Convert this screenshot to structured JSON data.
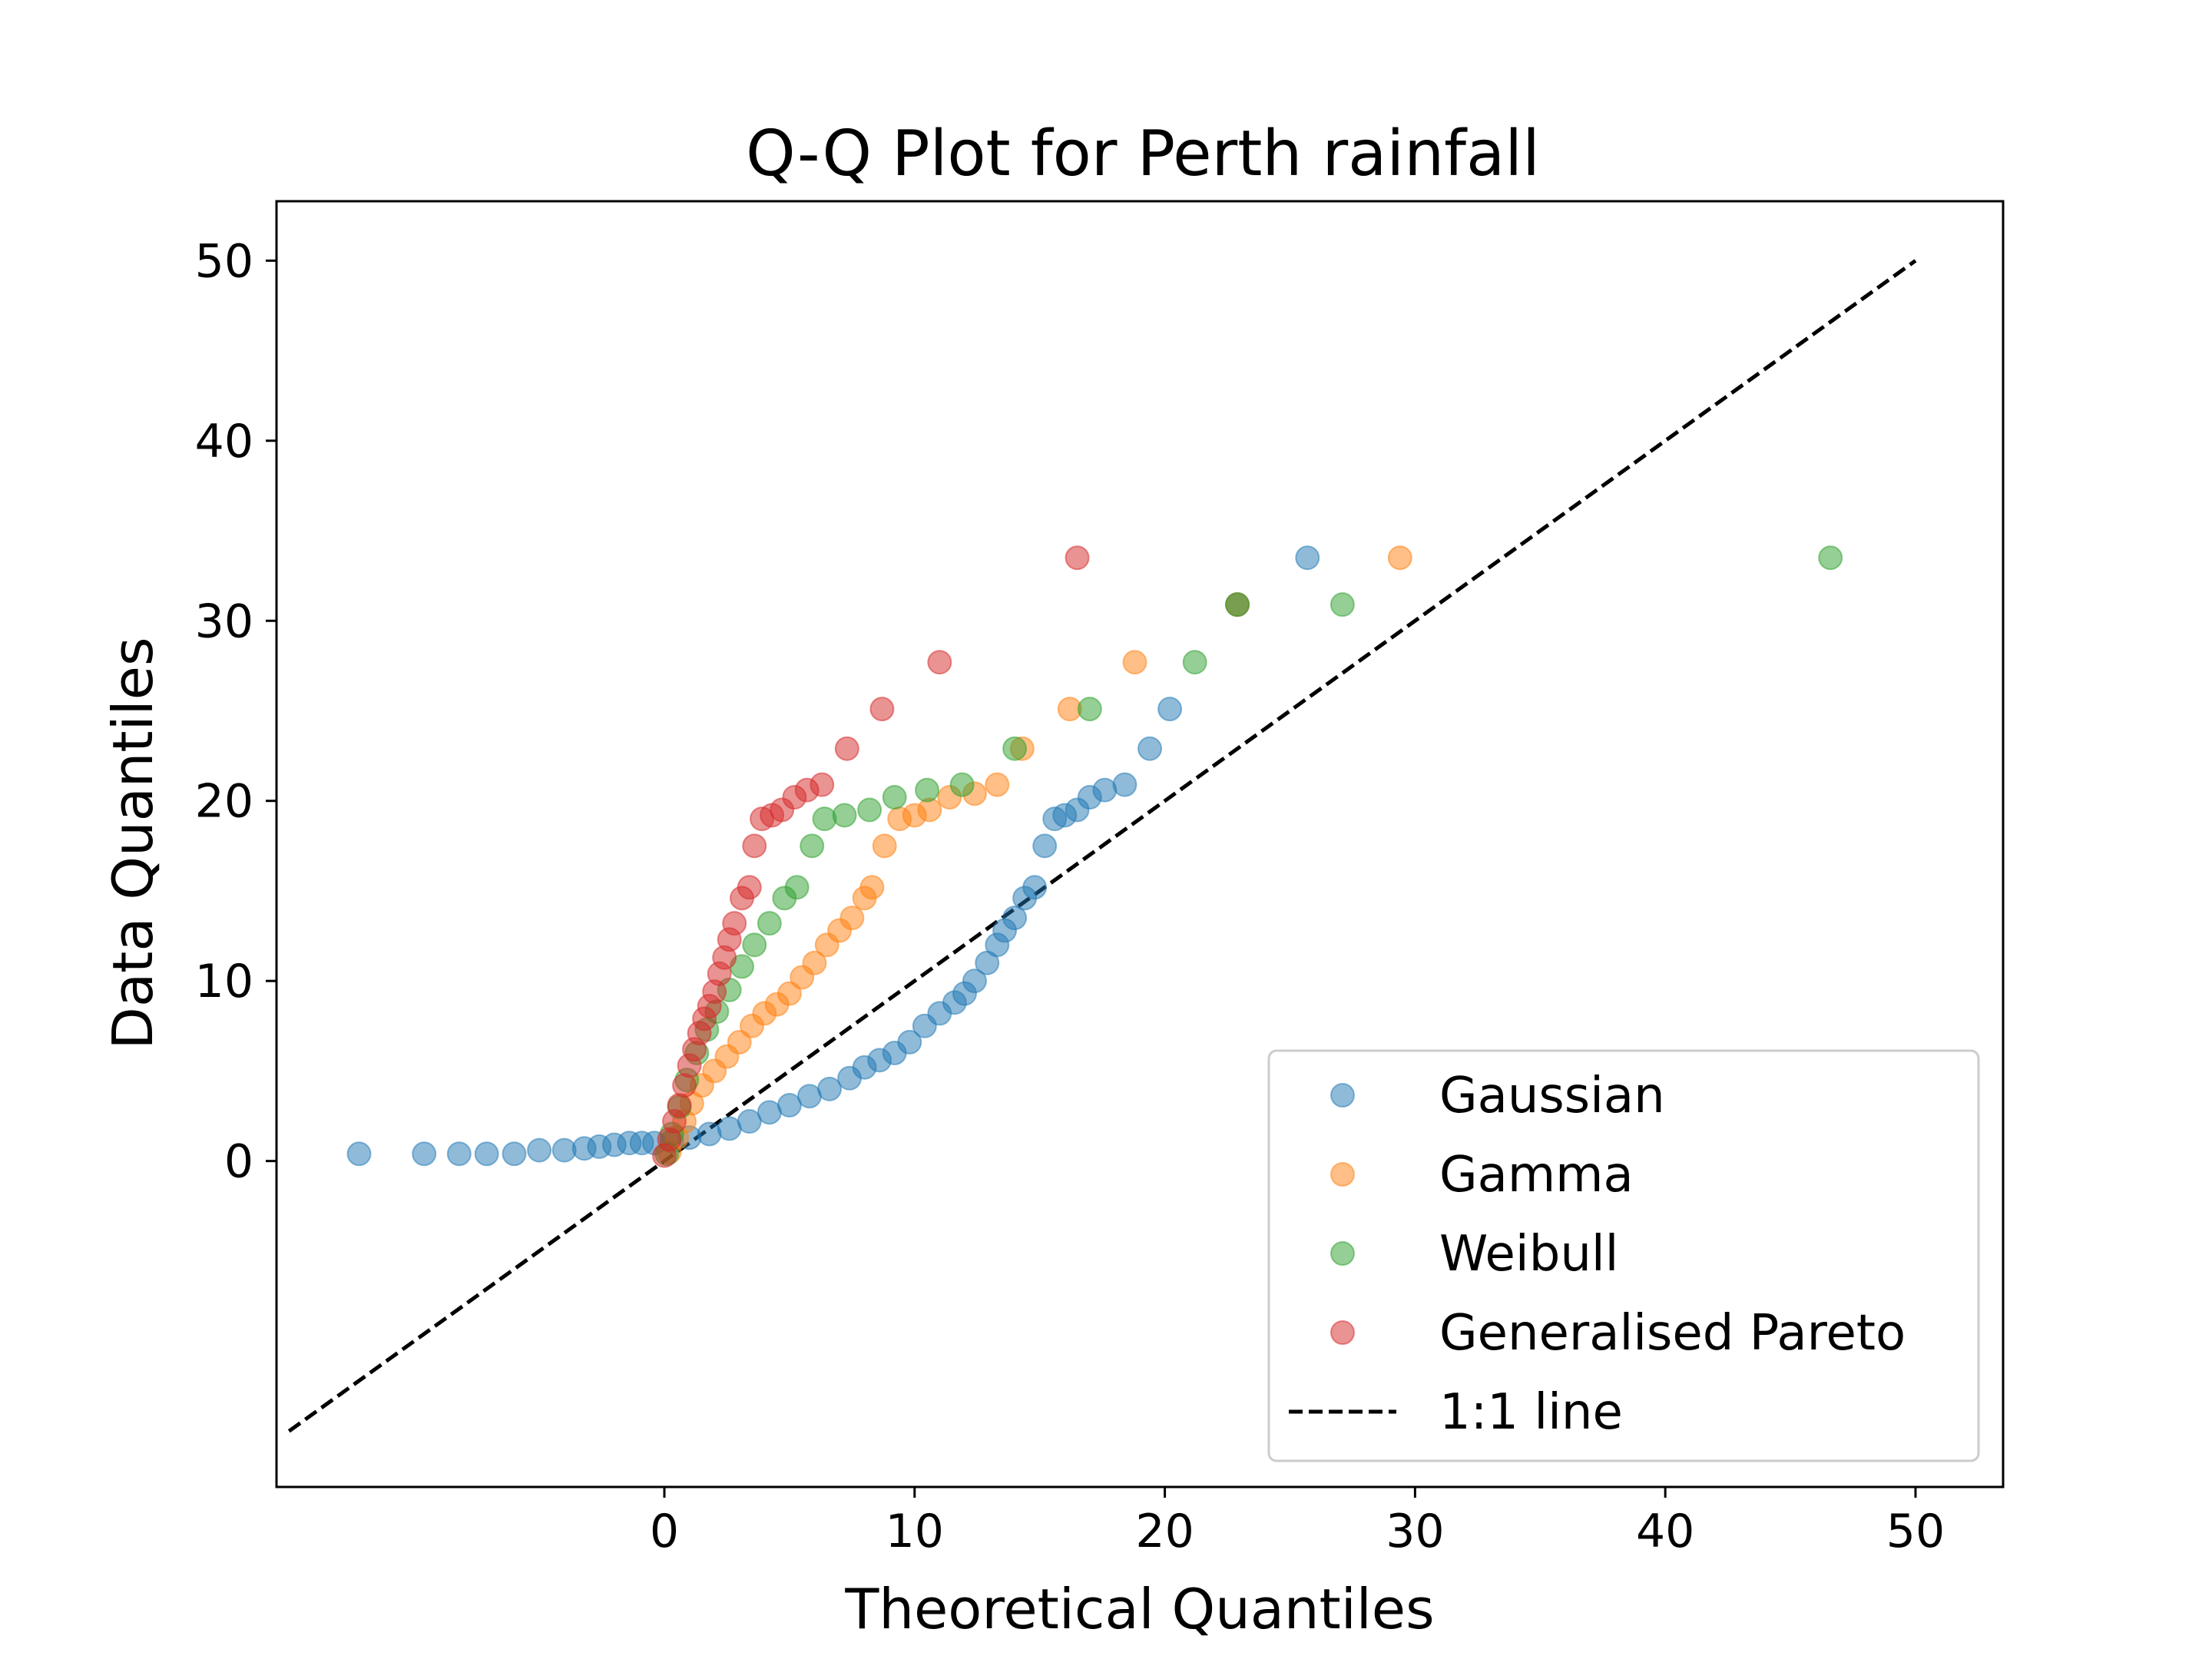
{
  "chart_data": {
    "type": "scatter",
    "title": "Q-Q Plot for Perth rainfall",
    "xlabel": "Theoretical Quantiles",
    "ylabel": "Data Quantiles",
    "xlim": [
      -15.5,
      53.5
    ],
    "ylim": [
      -18.1,
      53.3
    ],
    "xticks": [
      0,
      10,
      20,
      30,
      40,
      50
    ],
    "yticks": [
      0,
      10,
      20,
      30,
      40,
      50
    ],
    "grid": false,
    "legend_position": "lower-right",
    "series": [
      {
        "name": "Gaussian",
        "color": "#1f77b4",
        "x": [
          -12.2,
          -9.6,
          -8.2,
          -7.1,
          -6.0,
          -5.0,
          -4.0,
          -3.2,
          -2.6,
          -2.0,
          -1.4,
          -0.9,
          -0.4,
          0.3,
          1.0,
          1.8,
          2.6,
          3.4,
          4.2,
          5.0,
          5.8,
          6.6,
          7.4,
          8.0,
          8.6,
          9.2,
          9.8,
          10.4,
          11.0,
          11.6,
          12.0,
          12.4,
          12.9,
          13.3,
          13.6,
          14.0,
          14.4,
          14.8,
          15.2,
          15.6,
          16.0,
          16.5,
          17.0,
          17.6,
          18.4,
          19.4,
          20.2,
          22.9,
          25.7
        ],
        "y": [
          0.4,
          0.4,
          0.4,
          0.4,
          0.4,
          0.6,
          0.6,
          0.7,
          0.8,
          0.9,
          1.0,
          1.0,
          1.0,
          1.1,
          1.3,
          1.5,
          1.8,
          2.2,
          2.7,
          3.1,
          3.6,
          4.0,
          4.6,
          5.2,
          5.6,
          6.0,
          6.6,
          7.5,
          8.2,
          8.8,
          9.3,
          10.0,
          11.0,
          12.0,
          12.8,
          13.5,
          14.6,
          15.2,
          17.5,
          19.0,
          19.2,
          19.5,
          20.2,
          20.6,
          20.9,
          22.9,
          25.1,
          30.9,
          33.5
        ]
      },
      {
        "name": "Gamma",
        "color": "#ff7f0e",
        "x": [
          0.2,
          0.5,
          0.8,
          1.1,
          1.5,
          2.0,
          2.5,
          3.0,
          3.5,
          4.0,
          4.5,
          5.0,
          5.5,
          6.0,
          6.5,
          7.0,
          7.5,
          8.0,
          8.3,
          8.8,
          9.4,
          10.0,
          10.6,
          11.4,
          12.4,
          13.3,
          14.3,
          16.2,
          18.8,
          22.9,
          29.4
        ],
        "y": [
          0.5,
          1.3,
          2.2,
          3.2,
          4.2,
          5.0,
          5.8,
          6.6,
          7.5,
          8.2,
          8.7,
          9.3,
          10.2,
          11.0,
          12.0,
          12.8,
          13.5,
          14.6,
          15.2,
          17.5,
          19.0,
          19.2,
          19.5,
          20.2,
          20.4,
          20.9,
          22.9,
          25.1,
          27.7,
          30.9,
          33.5
        ]
      },
      {
        "name": "Weibull",
        "color": "#2ca02c",
        "x": [
          0.1,
          0.3,
          0.6,
          0.9,
          1.3,
          1.7,
          2.1,
          2.6,
          3.1,
          3.6,
          4.2,
          4.8,
          5.3,
          5.9,
          6.4,
          7.2,
          8.2,
          9.2,
          10.5,
          11.9,
          14.0,
          17.0,
          21.2,
          22.9,
          27.1,
          46.6
        ],
        "y": [
          0.4,
          1.5,
          3.0,
          4.5,
          6.0,
          7.3,
          8.3,
          9.5,
          10.8,
          12.0,
          13.2,
          14.6,
          15.2,
          17.5,
          19.0,
          19.2,
          19.5,
          20.2,
          20.6,
          20.9,
          22.9,
          25.1,
          27.7,
          30.9,
          30.9,
          33.5
        ]
      },
      {
        "name": "Generalised Pareto",
        "color": "#d62728",
        "x": [
          0.0,
          0.2,
          0.4,
          0.6,
          0.8,
          1.0,
          1.2,
          1.4,
          1.6,
          1.8,
          2.0,
          2.2,
          2.4,
          2.6,
          2.8,
          3.1,
          3.4,
          3.6,
          3.9,
          4.3,
          4.7,
          5.2,
          5.7,
          6.3,
          7.3,
          8.7,
          11.0,
          16.5
        ],
        "y": [
          0.3,
          1.2,
          2.2,
          3.1,
          4.2,
          5.3,
          6.2,
          7.1,
          7.9,
          8.6,
          9.4,
          10.4,
          11.3,
          12.3,
          13.2,
          14.6,
          15.2,
          17.5,
          19.0,
          19.2,
          19.5,
          20.2,
          20.6,
          20.9,
          22.9,
          25.1,
          27.7,
          33.5
        ]
      }
    ],
    "reference_line": {
      "name": "1:1 line",
      "color": "#000000",
      "style": "dashed",
      "x": [
        -15,
        50
      ],
      "y": [
        -15,
        50
      ]
    }
  }
}
